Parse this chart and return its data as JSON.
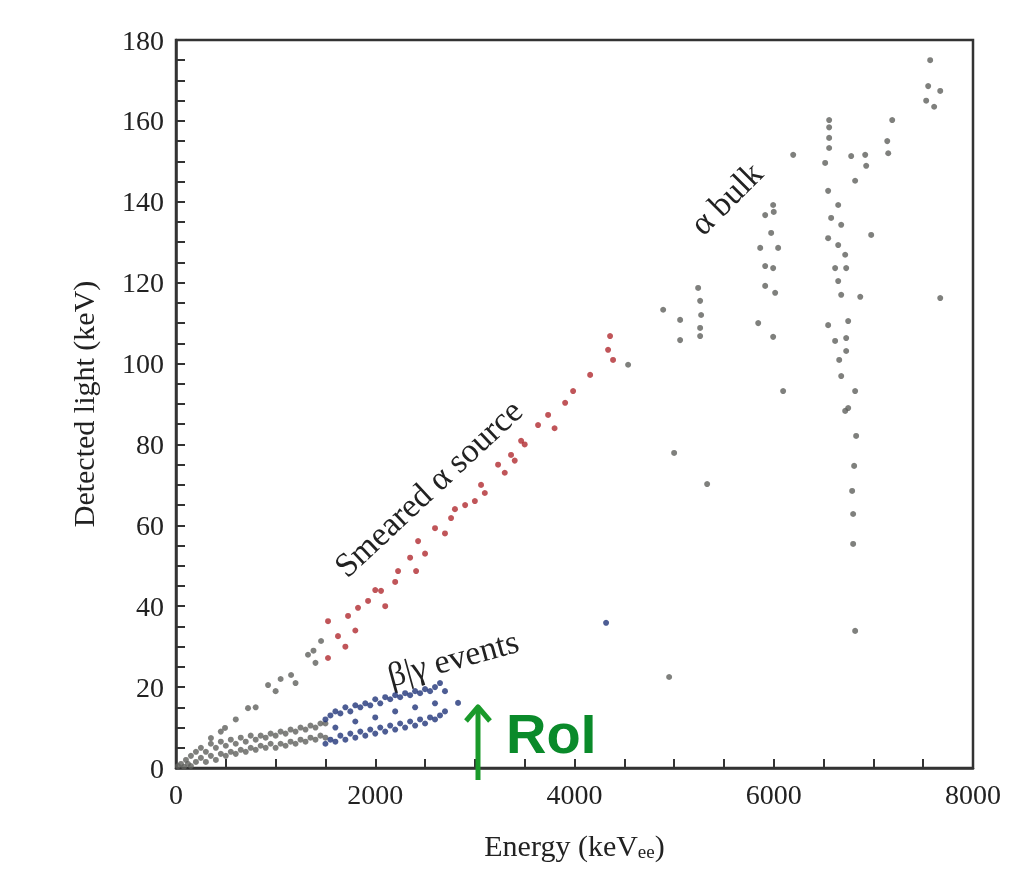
{
  "chart_data": {
    "type": "scatter",
    "xlabel": "Energy (keV$_{ee}$)",
    "ylabel": "Detected light (keV)",
    "xlim": [
      0,
      8000
    ],
    "ylim": [
      0,
      180
    ],
    "xticks": [
      0,
      {
        "value": 500,
        "label": null
      },
      {
        "value": 1000,
        "label": null
      },
      {
        "value": 1500,
        "label": null
      },
      2000,
      {
        "value": 2500,
        "label": null
      },
      {
        "value": 3000,
        "label": null
      },
      {
        "value": 3500,
        "label": null
      },
      4000,
      {
        "value": 4500,
        "label": null
      },
      {
        "value": 5000,
        "label": null
      },
      {
        "value": 5500,
        "label": null
      },
      6000,
      {
        "value": 6500,
        "label": null
      },
      {
        "value": 7000,
        "label": null
      },
      {
        "value": 7500,
        "label": null
      },
      8000
    ],
    "yticks": [
      0,
      {
        "value": 5,
        "label": null
      },
      {
        "value": 10,
        "label": null
      },
      {
        "value": 15,
        "label": null
      },
      20,
      {
        "value": 25,
        "label": null
      },
      {
        "value": 30,
        "label": null
      },
      {
        "value": 35,
        "label": null
      },
      40,
      {
        "value": 45,
        "label": null
      },
      {
        "value": 50,
        "label": null
      },
      {
        "value": 55,
        "label": null
      },
      60,
      {
        "value": 65,
        "label": null
      },
      {
        "value": 70,
        "label": null
      },
      {
        "value": 75,
        "label": null
      },
      80,
      {
        "value": 85,
        "label": null
      },
      {
        "value": 90,
        "label": null
      },
      {
        "value": 95,
        "label": null
      },
      100,
      {
        "value": 105,
        "label": null
      },
      {
        "value": 110,
        "label": null
      },
      {
        "value": 115,
        "label": null
      },
      120,
      {
        "value": 125,
        "label": null
      },
      {
        "value": 130,
        "label": null
      },
      {
        "value": 135,
        "label": null
      },
      140,
      {
        "value": 145,
        "label": null
      },
      {
        "value": 150,
        "label": null
      },
      {
        "value": 155,
        "label": null
      },
      160,
      {
        "value": 165,
        "label": null
      },
      {
        "value": 170,
        "label": null
      },
      {
        "value": 175,
        "label": null
      },
      180
    ],
    "grid": false,
    "marker": "circle",
    "annotations": [
      "Smeared α source",
      "β|γ events",
      "α bulk",
      "RoI"
    ],
    "series": [
      {
        "color": "#5f605c",
        "x": [
          20,
          50,
          80,
          100,
          120,
          150,
          150,
          200,
          200,
          250,
          250,
          300,
          300,
          350,
          350,
          400,
          400,
          450,
          450,
          500,
          500,
          550,
          550,
          600,
          600,
          650,
          650,
          700,
          700,
          750,
          750,
          800,
          800,
          850,
          850,
          900,
          900,
          950,
          950,
          1000,
          1000,
          1050,
          1050,
          1100,
          1100,
          1150,
          1150,
          1200,
          1200,
          1250,
          1250,
          1300,
          1300,
          1350,
          1350,
          1400,
          1400,
          1450,
          1450,
          1500,
          1500,
          351,
          450,
          492,
          600,
          723,
          800,
          924,
          1000,
          1155,
          1200,
          1325,
          1400,
          1456,
          1380,
          1050,
          7570,
          7550,
          7671,
          7530,
          7610,
          7189,
          7139,
          7149,
          6195,
          6556,
          6556,
          6556,
          6556,
          6516,
          6777,
          6918,
          6928,
          6817,
          6546,
          6647,
          6576,
          6677,
          6546,
          6647,
          6717,
          6616,
          6727,
          6647,
          6677,
          6868,
          6978,
          6546,
          6747,
          6616,
          6727,
          6727,
          6657,
          6677,
          6817,
          6747,
          6717,
          7671,
          5994,
          5914,
          6000,
          5974,
          6044,
          5864,
          5914,
          5994,
          5914,
          6014,
          5844,
          5994,
          6094,
          5241,
          5261,
          5271,
          5261,
          5261,
          5060,
          5060,
          4890,
          4538,
          5000,
          5331,
          6827,
          6807,
          6787,
          6797,
          6797,
          6817,
          4950
        ],
        "values": [
          0.5,
          1,
          0.3,
          2,
          1,
          0.5,
          3,
          1.5,
          4,
          2.5,
          5,
          1.5,
          4,
          3,
          6,
          2,
          5,
          3.5,
          6.5,
          3,
          5.5,
          4,
          7,
          3.5,
          6,
          4.5,
          7.5,
          4,
          6.5,
          5,
          8,
          4.5,
          7,
          5.5,
          8,
          5,
          7.5,
          6,
          8.5,
          5,
          8,
          6,
          9,
          5.5,
          8.5,
          6.5,
          9.5,
          6,
          9,
          7,
          10,
          6.5,
          9.5,
          7.5,
          10.5,
          7,
          10,
          8,
          11,
          7.5,
          11,
          7.4,
          9,
          9.9,
          12,
          14.8,
          15,
          20.5,
          19,
          23,
          21,
          28,
          26,
          31.4,
          29,
          22,
          175,
          168.6,
          167.4,
          165,
          163.5,
          160.2,
          155,
          152,
          151.6,
          160.2,
          158.4,
          155.8,
          153.3,
          149.6,
          151.3,
          151.6,
          148.9,
          145.2,
          142.7,
          139.2,
          136,
          134.3,
          131,
          129.3,
          126.9,
          123.6,
          123.6,
          120.4,
          117,
          116.5,
          131.8,
          109.5,
          110.5,
          105.6,
          106.3,
          103.1,
          100.9,
          96.9,
          93.2,
          89,
          88.3,
          116.2,
          139.2,
          136.7,
          137.5,
          132.3,
          128.6,
          128.6,
          124.1,
          123.6,
          119.2,
          117.5,
          110,
          106.6,
          93.2,
          118.7,
          115.5,
          112,
          108.8,
          106.8,
          110.8,
          105.8,
          113.3,
          99.7,
          77.9,
          70.2,
          82.1,
          74.7,
          68.5,
          62.8,
          55.4,
          33.9,
          22.5
        ]
      },
      {
        "color": "#b02a30",
        "x": [
          1526,
          1526,
          1626,
          1727,
          1827,
          1928,
          2058,
          2229,
          2410,
          2430,
          2600,
          2761,
          2902,
          3062,
          3233,
          3363,
          3464,
          3634,
          3735,
          3906,
          3986,
          4157,
          4387,
          4337,
          4357,
          1800,
          2000,
          2200,
          2500,
          2700,
          3000,
          3300,
          3500,
          3800,
          2350,
          2800,
          3100,
          3400,
          1700,
          2100
        ],
        "values": [
          27.2,
          36.3,
          32.6,
          37.6,
          39.6,
          41.3,
          43.8,
          48.7,
          48.7,
          56.1,
          59.3,
          61.8,
          65,
          70,
          75,
          77.4,
          80.9,
          84.8,
          87.3,
          90.3,
          93.2,
          97.2,
          100.9,
          103.4,
          106.8,
          34,
          44,
          46,
          53,
          58,
          66,
          73,
          80,
          84,
          52,
          64,
          68,
          76,
          30,
          40
        ]
      },
      {
        "color": "#213579",
        "x": [
          1500,
          1500,
          1550,
          1550,
          1600,
          1600,
          1650,
          1650,
          1700,
          1700,
          1750,
          1750,
          1800,
          1800,
          1850,
          1850,
          1900,
          1900,
          1950,
          1950,
          2000,
          2000,
          2050,
          2050,
          2100,
          2100,
          2150,
          2150,
          2200,
          2200,
          2250,
          2250,
          2300,
          2300,
          2350,
          2350,
          2400,
          2400,
          2450,
          2450,
          2500,
          2500,
          2550,
          2550,
          2600,
          2600,
          2650,
          2650,
          2700,
          2700,
          1600,
          1800,
          2000,
          2200,
          2400,
          2600,
          2831,
          4317
        ],
        "values": [
          6,
          12,
          7,
          13,
          6.5,
          14,
          8,
          13.5,
          7,
          15,
          8.5,
          14,
          7.5,
          15.5,
          9,
          15,
          8,
          16,
          9.5,
          15.5,
          8.5,
          17,
          10,
          16,
          9,
          17.5,
          10.5,
          17,
          9.5,
          18,
          11,
          17.5,
          10,
          18.5,
          11.5,
          18,
          10.5,
          19,
          12,
          18.5,
          11,
          19.5,
          12.5,
          19,
          12,
          20,
          13,
          21,
          14,
          19,
          10,
          11.5,
          12.5,
          14,
          15,
          16,
          16.1,
          35.9
        ]
      }
    ]
  }
}
